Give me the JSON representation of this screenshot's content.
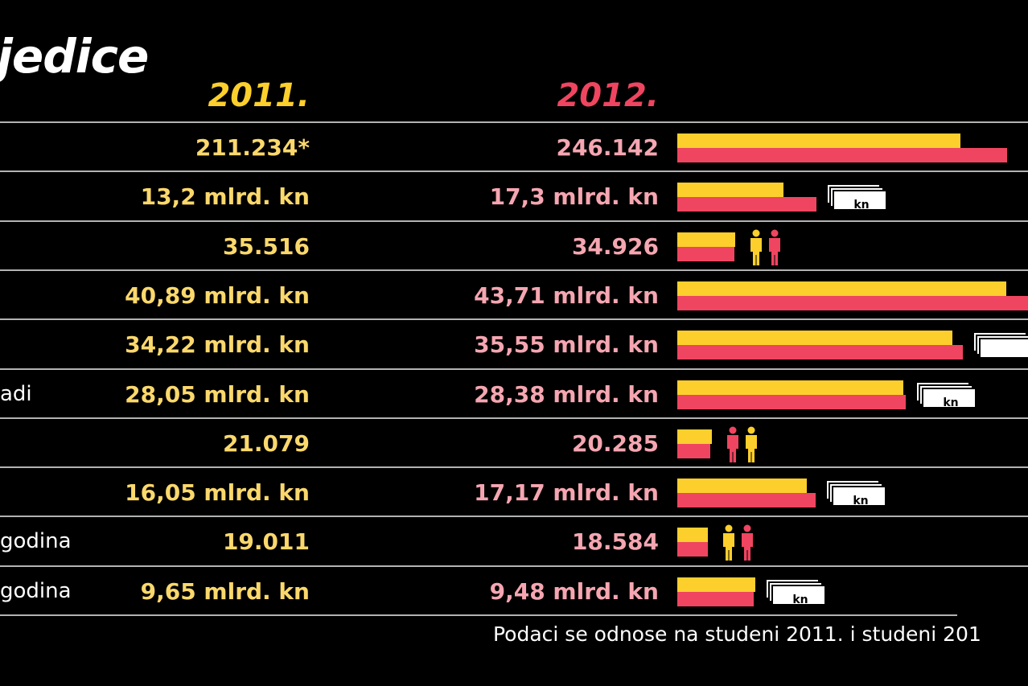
{
  "title": "jedice",
  "years": {
    "y2011": "2011.",
    "y2012": "2012."
  },
  "colors": {
    "c2011": "#fccf2c",
    "c2012": "#ef4560",
    "background": "#000000"
  },
  "chart_data": {
    "type": "bar",
    "series": [
      {
        "name": "2011.",
        "values": [
          211234,
          13.2,
          35516,
          40.89,
          34.22,
          28.05,
          21079,
          16.05,
          19011,
          9.65
        ]
      },
      {
        "name": "2012.",
        "values": [
          246142,
          17.3,
          34926,
          43.71,
          35.55,
          28.38,
          20285,
          17.17,
          18584,
          9.48
        ]
      }
    ],
    "rows": [
      {
        "label": "",
        "v2011": "211.234*",
        "v2012": "246.142",
        "a": 211234,
        "b": 246142,
        "max": 243000,
        "icon": "none"
      },
      {
        "label": "",
        "v2011": "13,2 mlrd. kn",
        "v2012": "17,3 mlrd. kn",
        "a": 13.2,
        "b": 17.3,
        "max": 40.5,
        "icon": "money",
        "icon_text": "kn"
      },
      {
        "label": "",
        "v2011": "35.516",
        "v2012": "34.926",
        "a": 35516,
        "b": 34926,
        "max": 200000,
        "icon": "people",
        "icon_order": "yellow-first"
      },
      {
        "label": "",
        "v2011": "40,89 mlrd. kn",
        "v2012": "43,71 mlrd. kn",
        "a": 40.89,
        "b": 43.71,
        "max": 40.5,
        "icon": "none"
      },
      {
        "label": "",
        "v2011": "34,22 mlrd. kn",
        "v2012": "35,55 mlrd. kn",
        "a": 34.22,
        "b": 35.55,
        "max": 40.5,
        "icon": "money",
        "icon_text": ""
      },
      {
        "label": "adi",
        "v2011": "28,05 mlrd. kn",
        "v2012": "28,38 mlrd. kn",
        "a": 28.05,
        "b": 28.38,
        "max": 40.5,
        "icon": "money",
        "icon_text": "kn"
      },
      {
        "label": "",
        "v2011": "21.079",
        "v2012": "20.285",
        "a": 21079,
        "b": 20285,
        "max": 200000,
        "icon": "people",
        "icon_order": "red-first"
      },
      {
        "label": "",
        "v2011": "16,05 mlrd. kn",
        "v2012": "17,17 mlrd. kn",
        "a": 16.05,
        "b": 17.17,
        "max": 40.5,
        "icon": "money",
        "icon_text": "kn"
      },
      {
        "label": "godina",
        "v2011": "19.011",
        "v2012": "18.584",
        "a": 19011,
        "b": 18584,
        "max": 200000,
        "icon": "people",
        "icon_order": "yellow-first"
      },
      {
        "label": "godina",
        "v2011": "9,65 mlrd. kn",
        "v2012": "9,48 mlrd. kn",
        "a": 9.65,
        "b": 9.48,
        "max": 40.5,
        "icon": "money",
        "icon_text": "kn"
      }
    ]
  },
  "footnote": "Podaci se odnose na studeni 2011. i studeni 201"
}
